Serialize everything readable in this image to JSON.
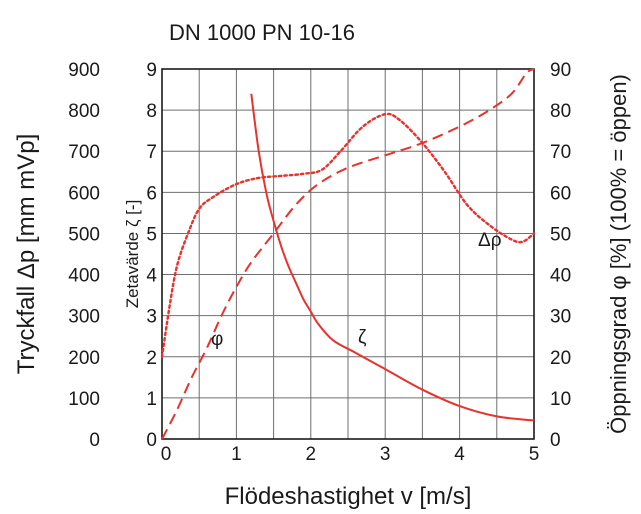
{
  "chart_data": {
    "type": "line",
    "title": "DN 1000 PN 10-16",
    "xlabel": "Flödeshastighet v [m/s]",
    "ylabel_outer_left": "Tryckfall Δp [mm mVp]",
    "ylabel_inner_left": "Zetavärde ζ [-]",
    "ylabel_right": "Öppningsgrad φ [%] (100% = öppen)",
    "xlim": [
      0,
      5
    ],
    "ylim_pressure": [
      0,
      900
    ],
    "ylim_zeta": [
      0,
      9
    ],
    "ylim_opening": [
      0,
      90
    ],
    "x_ticks": [
      "0",
      "1",
      "2",
      "3",
      "4",
      "5"
    ],
    "pressure_ticks": [
      "0",
      "100",
      "200",
      "300",
      "400",
      "500",
      "600",
      "700",
      "800",
      "900"
    ],
    "zeta_ticks": [
      "0",
      "1",
      "2",
      "3",
      "4",
      "5",
      "6",
      "7",
      "8",
      "9"
    ],
    "opening_ticks": [
      "0",
      "10",
      "20",
      "30",
      "40",
      "50",
      "60",
      "70",
      "80",
      "90"
    ],
    "grid": true,
    "series_color": "#e8322d",
    "series": [
      {
        "name": "Δρ",
        "style": "dotted",
        "axis": "pressure",
        "x": [
          0,
          0.1,
          0.2,
          0.35,
          0.5,
          0.7,
          1.0,
          1.3,
          1.6,
          1.9,
          2.15,
          2.4,
          2.7,
          3.0,
          3.2,
          3.5,
          3.8,
          4.1,
          4.4,
          4.7,
          4.85,
          5.0
        ],
        "y": [
          200,
          320,
          420,
          500,
          560,
          590,
          620,
          635,
          640,
          645,
          655,
          700,
          760,
          790,
          775,
          720,
          650,
          570,
          520,
          485,
          480,
          500
        ]
      },
      {
        "name": "φ",
        "style": "dashed",
        "axis": "opening",
        "x": [
          0,
          0.2,
          0.4,
          0.6,
          0.8,
          1.0,
          1.2,
          1.5,
          1.8,
          2.1,
          2.5,
          3.0,
          3.5,
          4.0,
          4.4,
          4.7,
          4.9,
          5.0
        ],
        "y": [
          0,
          7,
          15,
          22,
          30,
          37,
          43,
          50,
          57,
          62,
          66,
          69,
          72,
          76,
          80,
          84,
          89,
          90
        ]
      },
      {
        "name": "ζ",
        "style": "solid",
        "axis": "zeta",
        "x": [
          1.2,
          1.3,
          1.4,
          1.5,
          1.6,
          1.7,
          1.8,
          1.9,
          2.0,
          2.1,
          2.3,
          2.6,
          3.0,
          3.5,
          4.0,
          4.5,
          5.0
        ],
        "y": [
          8.4,
          7.0,
          6.0,
          5.3,
          4.7,
          4.2,
          3.8,
          3.4,
          3.1,
          2.8,
          2.4,
          2.1,
          1.7,
          1.2,
          0.8,
          0.55,
          0.45
        ]
      }
    ]
  }
}
